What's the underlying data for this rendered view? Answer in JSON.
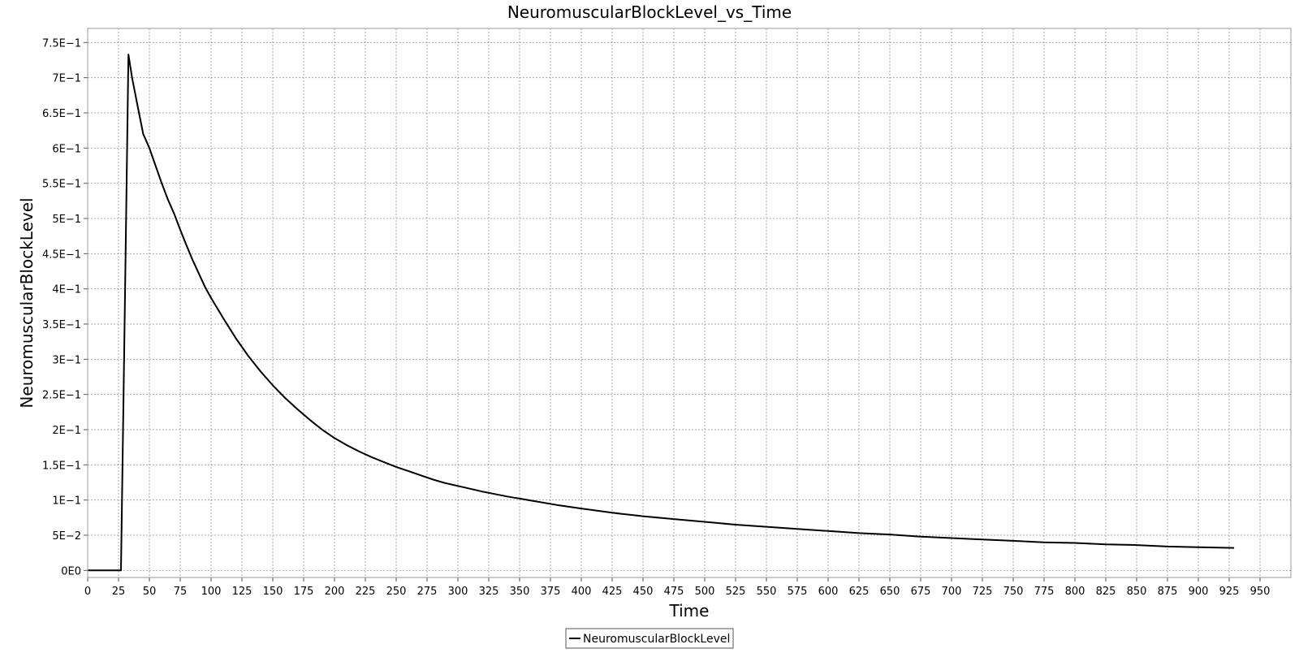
{
  "chart_data": {
    "type": "line",
    "title": "NeuromuscularBlockLevel_vs_Time",
    "xlabel": "Time",
    "ylabel": "NeuromuscularBlockLevel",
    "xlim": [
      0,
      975
    ],
    "ylim": [
      -0.01,
      0.77
    ],
    "x_ticks": [
      0,
      25,
      50,
      75,
      100,
      125,
      150,
      175,
      200,
      225,
      250,
      275,
      300,
      325,
      350,
      375,
      400,
      425,
      450,
      475,
      500,
      525,
      550,
      575,
      600,
      625,
      650,
      675,
      700,
      725,
      750,
      775,
      800,
      825,
      850,
      875,
      900,
      925,
      950
    ],
    "y_ticks": [
      {
        "value": 0,
        "label": "0E0"
      },
      {
        "value": 0.05,
        "label": "5E−2"
      },
      {
        "value": 0.1,
        "label": "1E−1"
      },
      {
        "value": 0.15,
        "label": "1.5E−1"
      },
      {
        "value": 0.2,
        "label": "2E−1"
      },
      {
        "value": 0.25,
        "label": "2.5E−1"
      },
      {
        "value": 0.3,
        "label": "3E−1"
      },
      {
        "value": 0.35,
        "label": "3.5E−1"
      },
      {
        "value": 0.4,
        "label": "4E−1"
      },
      {
        "value": 0.45,
        "label": "4.5E−1"
      },
      {
        "value": 0.5,
        "label": "5E−1"
      },
      {
        "value": 0.55,
        "label": "5.5E−1"
      },
      {
        "value": 0.6,
        "label": "6E−1"
      },
      {
        "value": 0.65,
        "label": "6.5E−1"
      },
      {
        "value": 0.7,
        "label": "7E−1"
      },
      {
        "value": 0.75,
        "label": "7.5E−1"
      }
    ],
    "grid": true,
    "legend_position": "bottom-center",
    "series": [
      {
        "name": "NeuromuscularBlockLevel",
        "color": "#000000",
        "x": [
          0,
          27,
          30,
          33,
          36,
          40,
          45,
          50,
          55,
          60,
          65,
          70,
          75,
          80,
          85,
          90,
          95,
          100,
          110,
          120,
          130,
          140,
          150,
          160,
          170,
          180,
          190,
          200,
          210,
          220,
          230,
          240,
          250,
          260,
          270,
          280,
          290,
          300,
          320,
          340,
          360,
          380,
          400,
          425,
          450,
          475,
          500,
          525,
          550,
          575,
          600,
          625,
          650,
          675,
          700,
          725,
          750,
          775,
          800,
          825,
          850,
          875,
          900,
          929
        ],
        "y": [
          0,
          0,
          0.36,
          0.733,
          0.7,
          0.664,
          0.62,
          0.6,
          0.575,
          0.55,
          0.527,
          0.507,
          0.484,
          0.462,
          0.441,
          0.422,
          0.403,
          0.387,
          0.358,
          0.33,
          0.305,
          0.283,
          0.263,
          0.245,
          0.229,
          0.214,
          0.2,
          0.188,
          0.178,
          0.169,
          0.161,
          0.154,
          0.147,
          0.141,
          0.135,
          0.129,
          0.124,
          0.12,
          0.112,
          0.105,
          0.099,
          0.093,
          0.088,
          0.082,
          0.077,
          0.073,
          0.069,
          0.065,
          0.062,
          0.059,
          0.056,
          0.053,
          0.051,
          0.048,
          0.046,
          0.044,
          0.042,
          0.04,
          0.039,
          0.037,
          0.036,
          0.034,
          0.033,
          0.032
        ]
      }
    ]
  }
}
